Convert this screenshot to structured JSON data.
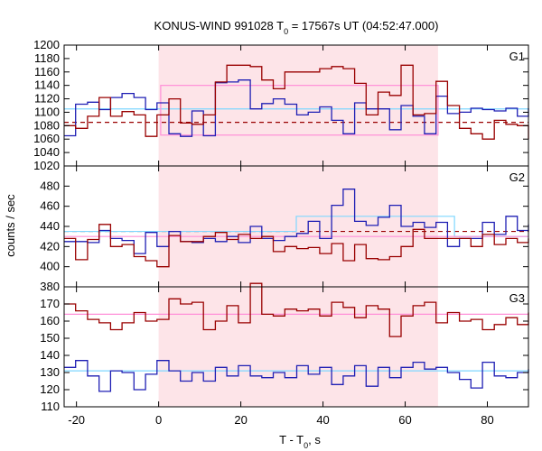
{
  "chart_data": {
    "type": "line",
    "title": "KONUS-WIND 991028 T",
    "title_subscript": "0",
    "title_rest": " = 17567s UT (04:52:47.000)",
    "xlabel": "T - T",
    "xlabel_subscript": "0",
    "xlabel_rest": ", s",
    "ylabel": "counts / sec",
    "xlim": [
      -23,
      90
    ],
    "xticks": [
      -20,
      0,
      20,
      40,
      60,
      80
    ],
    "shaded_interval": [
      0,
      68
    ],
    "colors": {
      "red": "#990000",
      "blue": "#1f1fb4",
      "pink": "#ff8fd8",
      "cyan": "#7fd7ff",
      "shade": "#fde4e8"
    },
    "panels": [
      {
        "label": "G1",
        "ylim": [
          1020,
          1200
        ],
        "yticks": [
          1020,
          1040,
          1060,
          1080,
          1100,
          1120,
          1140,
          1160,
          1180,
          1200
        ],
        "red_series": {
          "x": [
            -23,
            -20.2,
            -17.3,
            -14.5,
            -11.7,
            -8.9,
            -6,
            -3.2,
            -0.4,
            2.5,
            5.3,
            8.1,
            10.9,
            13.8,
            16.6,
            19.4,
            22.3,
            25.1,
            27.9,
            30.7,
            33.6,
            36.4,
            39.2,
            42.1,
            44.9,
            47.7,
            50.5,
            53.4,
            56.2,
            59,
            61.9,
            64.7,
            67.5,
            70.3,
            73.2,
            76,
            78.8,
            81.7,
            84.5,
            87.3,
            90
          ],
          "values": [
            1080,
            1076,
            1094,
            1122,
            1094,
            1101,
            1096,
            1064,
            1096,
            1120,
            1084,
            1082,
            1096,
            1145,
            1170,
            1170,
            1168,
            1148,
            1135,
            1160,
            1160,
            1160,
            1165,
            1168,
            1165,
            1143,
            1096,
            1130,
            1125,
            1170,
            1096,
            1098,
            1146,
            1110,
            1076,
            1068,
            1060,
            1088,
            1082,
            1080,
            1060
          ],
          "step": true
        },
        "blue_series": {
          "x": [
            -23,
            -20.2,
            -17.3,
            -14.5,
            -11.7,
            -8.9,
            -6,
            -3.2,
            -0.4,
            2.5,
            5.3,
            8.1,
            10.9,
            13.8,
            16.6,
            19.4,
            22.3,
            25.1,
            27.9,
            30.7,
            33.6,
            36.4,
            39.2,
            42.1,
            44.9,
            47.7,
            50.5,
            53.4,
            56.2,
            59,
            61.9,
            64.7,
            67.5,
            70.3,
            73.2,
            76,
            78.8,
            81.7,
            84.5,
            87.3,
            90
          ],
          "values": [
            1065,
            1112,
            1115,
            1104,
            1122,
            1128,
            1122,
            1104,
            1114,
            1068,
            1064,
            1102,
            1065,
            1144,
            1145,
            1148,
            1105,
            1113,
            1120,
            1112,
            1096,
            1100,
            1108,
            1088,
            1068,
            1114,
            1105,
            1105,
            1074,
            1110,
            1094,
            1068,
            1124,
            1098,
            1100,
            1106,
            1104,
            1102,
            1106,
            1094,
            1106
          ],
          "step": true
        },
        "red_dashed_level": 1085,
        "cyan_level": 1105,
        "pink_box": {
          "x": [
            0.5,
            68
          ],
          "y": [
            1066,
            1140
          ]
        }
      },
      {
        "label": "G2",
        "ylim": [
          380,
          500
        ],
        "yticks": [
          380,
          400,
          420,
          440,
          460,
          480
        ],
        "red_series": {
          "x": [
            -23,
            -20.2,
            -17.3,
            -14.5,
            -11.7,
            -8.9,
            -6,
            -3.2,
            -0.4,
            2.5,
            5.3,
            8.1,
            10.9,
            13.8,
            16.6,
            19.4,
            22.3,
            25.1,
            27.9,
            30.7,
            33.6,
            36.4,
            39.2,
            42.1,
            44.9,
            47.7,
            50.5,
            53.4,
            56.2,
            59,
            61.9,
            64.7,
            67.5,
            70.3,
            73.2,
            76,
            78.8,
            81.7,
            84.5,
            87.3,
            90
          ],
          "values": [
            428,
            407,
            427,
            442,
            420,
            422,
            410,
            406,
            400,
            431,
            425,
            425,
            430,
            434,
            427,
            432,
            428,
            430,
            415,
            420,
            418,
            419,
            413,
            423,
            406,
            422,
            408,
            407,
            410,
            420,
            437,
            428,
            428,
            428,
            428,
            420,
            432,
            422,
            428,
            424,
            428
          ],
          "step": true
        },
        "blue_series": {
          "x": [
            -23,
            -20.2,
            -17.3,
            -14.5,
            -11.7,
            -8.9,
            -6,
            -3.2,
            -0.4,
            2.5,
            5.3,
            8.1,
            10.9,
            13.8,
            16.6,
            19.4,
            22.3,
            25.1,
            27.9,
            30.7,
            33.6,
            36.4,
            39.2,
            42.1,
            44.9,
            47.7,
            50.5,
            53.4,
            56.2,
            59,
            61.9,
            64.7,
            67.5,
            70.3,
            73.2,
            76,
            78.8,
            81.7,
            84.5,
            87.3,
            90
          ],
          "values": [
            425,
            425,
            424,
            436,
            428,
            426,
            413,
            434,
            420,
            435,
            425,
            424,
            428,
            425,
            430,
            424,
            440,
            428,
            426,
            430,
            433,
            445,
            428,
            461,
            477,
            445,
            441,
            449,
            461,
            440,
            444,
            439,
            444,
            420,
            428,
            428,
            444,
            432,
            450,
            436,
            442
          ],
          "step": true
        },
        "red_dashed_level": 435,
        "cyan_segments": [
          {
            "x": [
              -23,
              33.5
            ],
            "y": 435
          },
          {
            "x": [
              33.5,
              72
            ],
            "y": 450
          },
          {
            "x": [
              72,
              90
            ],
            "y": 430
          }
        ],
        "pink_segments": [
          {
            "x": [
              -23,
              90
            ],
            "y": 430
          }
        ]
      },
      {
        "label": "G3",
        "ylim": [
          110,
          180
        ],
        "yticks": [
          110,
          120,
          130,
          140,
          150,
          160,
          170
        ],
        "red_series": {
          "x": [
            -23,
            -20.2,
            -17.3,
            -14.5,
            -11.7,
            -8.9,
            -6,
            -3.2,
            -0.4,
            2.5,
            5.3,
            8.1,
            10.9,
            13.8,
            16.6,
            19.4,
            22.3,
            25.1,
            27.9,
            30.7,
            33.6,
            36.4,
            39.2,
            42.1,
            44.9,
            47.7,
            50.5,
            53.4,
            56.2,
            59,
            61.9,
            64.7,
            67.5,
            70.3,
            73.2,
            76,
            78.8,
            81.7,
            84.5,
            87.3,
            90
          ],
          "values": [
            170,
            166,
            161,
            159,
            155,
            159,
            165,
            160,
            161,
            173,
            170,
            171,
            155,
            160,
            169,
            159,
            182,
            164,
            163,
            167,
            166,
            167,
            163,
            171,
            168,
            162,
            169,
            167,
            151,
            163,
            169,
            171,
            159,
            165,
            160,
            161,
            155,
            158,
            162,
            158,
            165
          ],
          "step": true
        },
        "blue_series": {
          "x": [
            -23,
            -20.2,
            -17.3,
            -14.5,
            -11.7,
            -8.9,
            -6,
            -3.2,
            -0.4,
            2.5,
            5.3,
            8.1,
            10.9,
            13.8,
            16.6,
            19.4,
            22.3,
            25.1,
            27.9,
            30.7,
            33.6,
            36.4,
            39.2,
            42.1,
            44.9,
            47.7,
            50.5,
            53.4,
            56.2,
            59,
            61.9,
            64.7,
            67.5,
            70.3,
            73.2,
            76,
            78.8,
            81.7,
            84.5,
            87.3,
            90
          ],
          "values": [
            133,
            137,
            128,
            119,
            131,
            130,
            120,
            129,
            137,
            131,
            125,
            130,
            125,
            133,
            128,
            134,
            128,
            127,
            130,
            127,
            134,
            129,
            133,
            123,
            128,
            134,
            122,
            133,
            127,
            133,
            136,
            132,
            133,
            130,
            126,
            121,
            136,
            128,
            127,
            130,
            132
          ],
          "step": true
        },
        "red_level": 164,
        "cyan_level": 131
      }
    ]
  }
}
